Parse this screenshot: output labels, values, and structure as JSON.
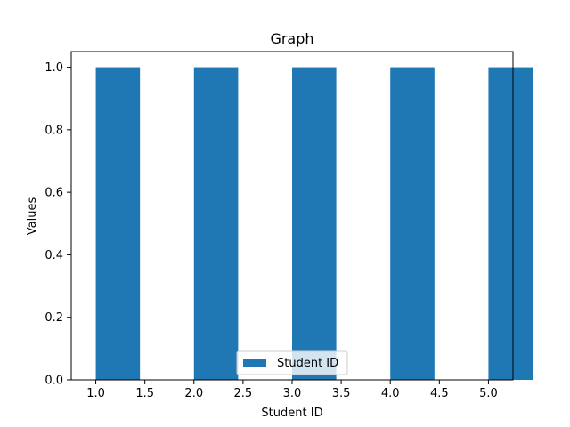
{
  "chart_data": {
    "type": "bar",
    "title": "Graph",
    "xlabel": "Student ID",
    "ylabel": "Values",
    "x": [
      1,
      2,
      3,
      4,
      5
    ],
    "series": [
      {
        "name": "Student ID",
        "values": [
          1,
          1,
          1,
          1,
          1
        ],
        "color": "#1f77b4"
      }
    ],
    "bar_width": 0.5,
    "xlim": [
      0.75,
      5.25
    ],
    "ylim": [
      0,
      1.05
    ],
    "x_ticks": [
      1.0,
      1.5,
      2.0,
      2.5,
      3.0,
      3.5,
      4.0,
      4.5,
      5.0
    ],
    "x_tick_labels": [
      "1.0",
      "1.5",
      "2.0",
      "2.5",
      "3.0",
      "3.5",
      "4.0",
      "4.5",
      "5.0"
    ],
    "y_ticks": [
      0.0,
      0.2,
      0.4,
      0.6,
      0.8,
      1.0
    ],
    "y_tick_labels": [
      "0.0",
      "0.2",
      "0.4",
      "0.6",
      "0.8",
      "1.0"
    ],
    "grid": false,
    "legend_position": "lower-center"
  }
}
